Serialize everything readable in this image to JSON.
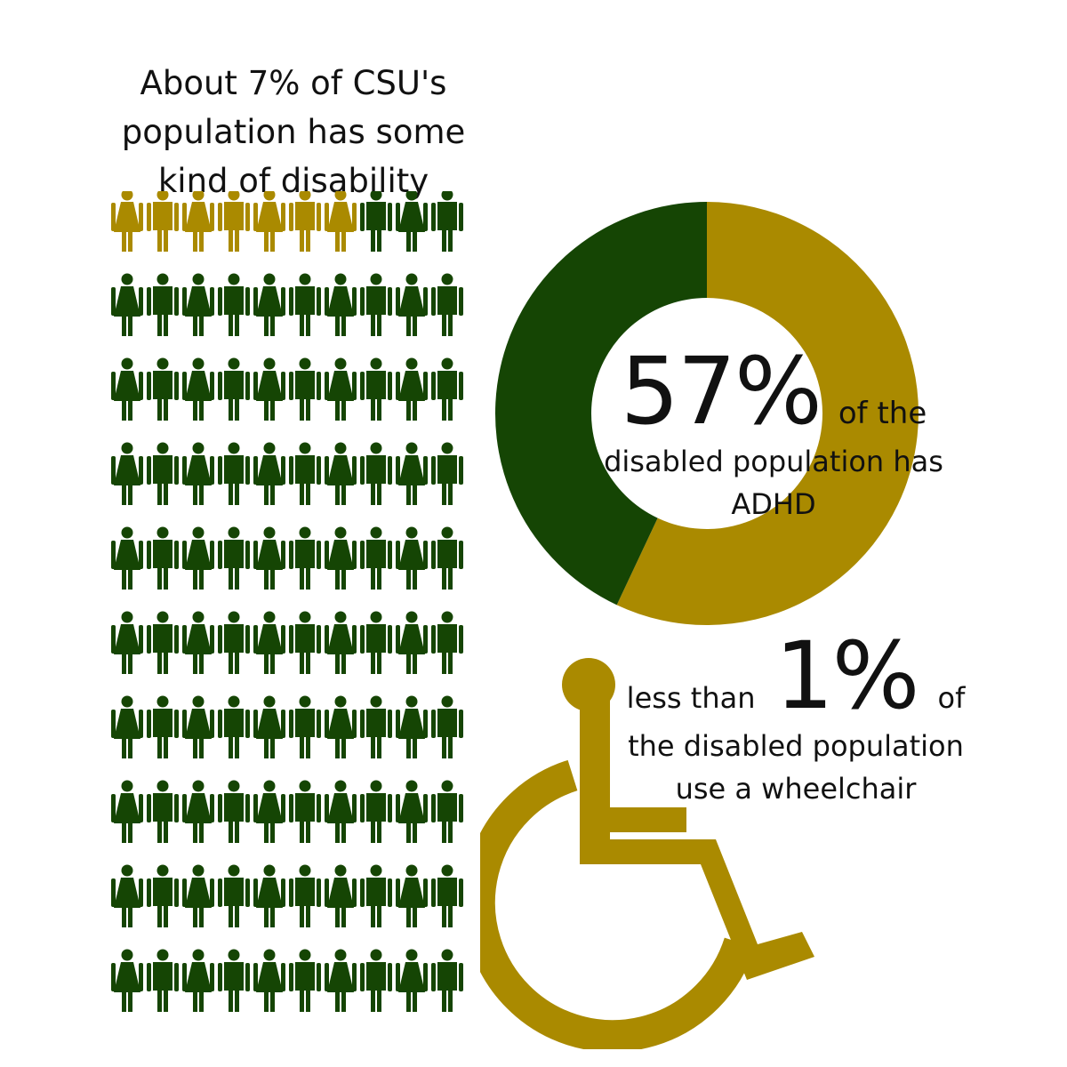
{
  "headline": {
    "lines": [
      "About 7% of CSU's",
      "population has some",
      "kind of disability"
    ]
  },
  "colors": {
    "gold": "#AA8A00",
    "green": "#154504",
    "text": "#111111"
  },
  "chart_data": [
    {
      "type": "pictograph",
      "rows": 10,
      "columns": 10,
      "total_figures": 100,
      "highlighted_figures": 7,
      "highlighted_value_percent": 7,
      "figure_pattern": [
        "female",
        "male"
      ],
      "icons": [
        "female-figure-icon",
        "male-figure-icon"
      ]
    },
    {
      "type": "pie",
      "style": "donut",
      "slices": [
        {
          "value": 57,
          "color": "#AA8A00"
        },
        {
          "value": 43,
          "color": "#154504"
        }
      ]
    }
  ],
  "donut_text": {
    "big": "57%",
    "suffix": "of the",
    "line1": "disabled population has",
    "line2": "ADHD"
  },
  "wheelchair_text": {
    "prefix": "less than",
    "big": "1%",
    "suffix": "of",
    "line1": "the disabled population",
    "line2": "use a wheelchair"
  },
  "icons": {
    "wheelchair": "wheelchair-icon"
  }
}
